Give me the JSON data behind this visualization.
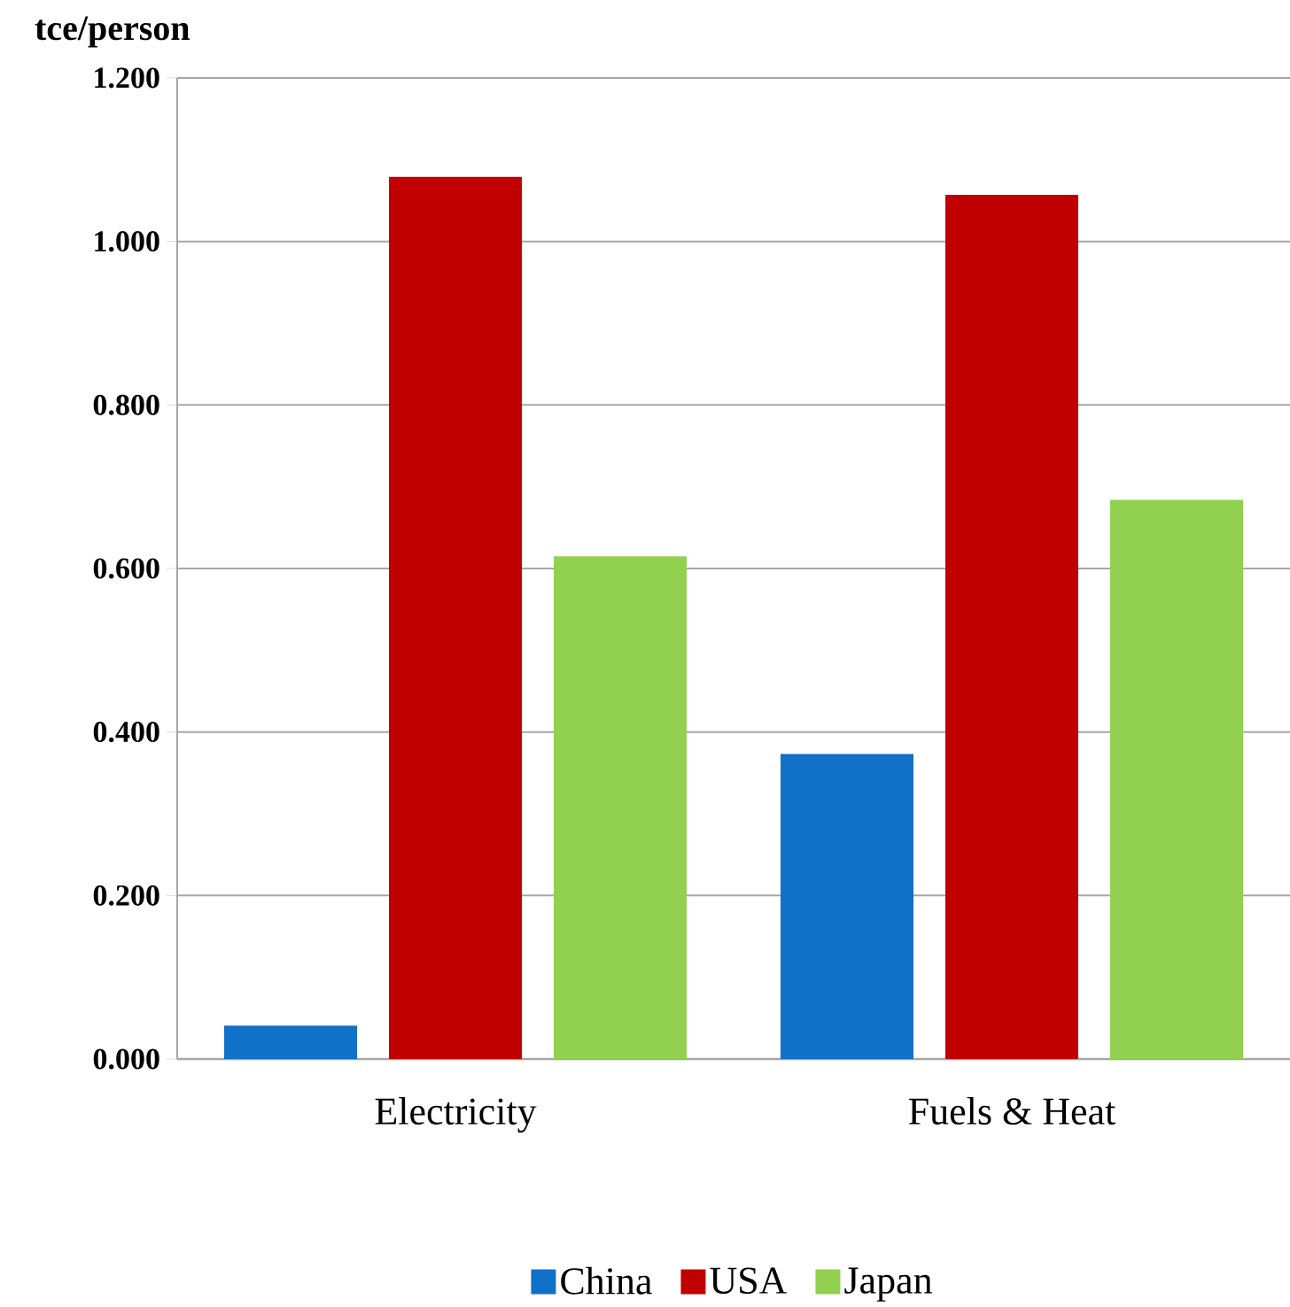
{
  "chart_data": {
    "type": "bar",
    "ylabel": "tce/person",
    "categories": [
      "Electricity",
      "Fuels & Heat"
    ],
    "series": [
      {
        "name": "China",
        "color": "#1170c8",
        "values": [
          0.041,
          0.373
        ]
      },
      {
        "name": "USA",
        "color": "#c00000",
        "values": [
          1.079,
          1.057
        ]
      },
      {
        "name": "Japan",
        "color": "#92d050",
        "values": [
          0.615,
          0.684
        ]
      }
    ],
    "ylim": [
      0,
      1.2
    ],
    "yticks": [
      {
        "value": 0,
        "label": "0.000"
      },
      {
        "value": 0.2,
        "label": "0.200"
      },
      {
        "value": 0.4,
        "label": "0.400"
      },
      {
        "value": 0.6,
        "label": "0.600"
      },
      {
        "value": 0.8,
        "label": "0.800"
      },
      {
        "value": 1.0,
        "label": "1.000"
      },
      {
        "value": 1.2,
        "label": "1.200"
      }
    ],
    "grid": "y",
    "legend": "bottom"
  }
}
